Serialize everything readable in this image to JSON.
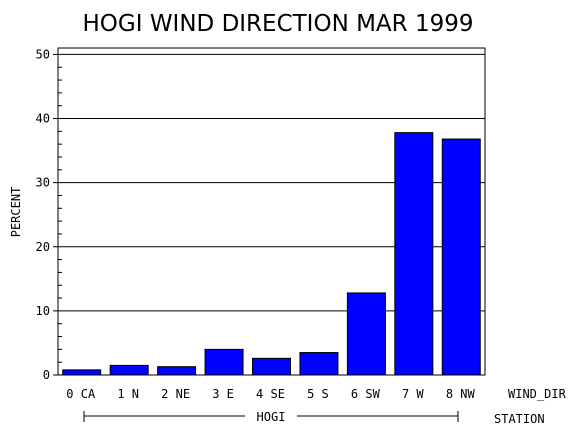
{
  "chart_data": {
    "type": "bar",
    "title": "HOGI WIND DIRECTION MAR 1999",
    "ylabel": "PERCENT",
    "xlabel": "WIND_DIR",
    "group_label": "HOGI",
    "group_axis_label": "STATION",
    "categories": [
      "0 CA",
      "1 N",
      "2 NE",
      "3 E",
      "4 SE",
      "5 S",
      "6 SW",
      "7 W",
      "8 NW"
    ],
    "values": [
      0.8,
      1.5,
      1.3,
      4.0,
      2.6,
      3.5,
      12.8,
      37.8,
      36.8
    ],
    "ylim": [
      0,
      51
    ],
    "yticks": [
      "0",
      "10",
      "20",
      "30",
      "40",
      "50"
    ],
    "grid": true,
    "bar_color": "#0000ff"
  }
}
